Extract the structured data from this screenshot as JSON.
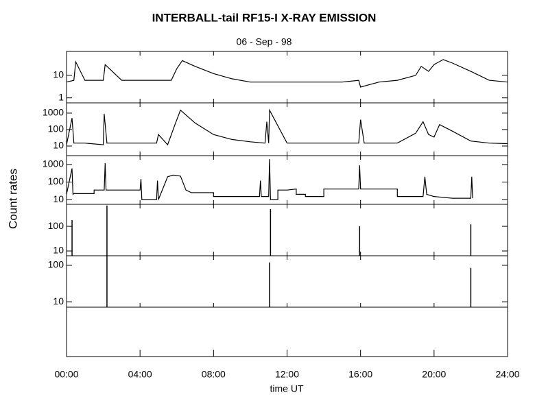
{
  "title": "INTERBALL-tail  RF15-I   X-RAY  EMISSION",
  "subtitle": "06 - Sep - 98",
  "ylabel": "Count  rates",
  "xlabel": "time UT",
  "xlim": [
    0,
    24
  ],
  "xticks": [
    {
      "value": 0,
      "label": "00:00"
    },
    {
      "value": 4,
      "label": "04:00"
    },
    {
      "value": 8,
      "label": "08:00"
    },
    {
      "value": 12,
      "label": "12:00"
    },
    {
      "value": 16,
      "label": "16:00"
    },
    {
      "value": 20,
      "label": "20:00"
    },
    {
      "value": 24,
      "label": "24:00"
    }
  ],
  "chart_data": [
    {
      "type": "line",
      "log": true,
      "color": "#000000",
      "ylim": [
        0.6,
        115
      ],
      "yticks": [
        1,
        10
      ],
      "x": [
        0,
        0.4,
        0.5,
        1,
        2,
        2.1,
        3,
        4,
        5,
        5.7,
        6,
        6.3,
        7,
        8,
        9,
        10,
        11,
        12,
        13,
        14,
        15,
        15.9,
        16,
        17,
        18,
        19,
        19.3,
        19.7,
        20,
        20.5,
        21,
        22,
        23,
        24
      ],
      "values": [
        5,
        6,
        40,
        6,
        6,
        30,
        6,
        6,
        6,
        6,
        20,
        45,
        25,
        12,
        7,
        5,
        5,
        5,
        5,
        5,
        5,
        6,
        3,
        5,
        6,
        10,
        25,
        15,
        30,
        50,
        35,
        15,
        6,
        5
      ]
    },
    {
      "type": "line",
      "log": true,
      "color": "#000000",
      "ylim": [
        2.6,
        4200
      ],
      "yticks": [
        10,
        100,
        1000
      ],
      "x": [
        0,
        0.3,
        0.4,
        1,
        2,
        2.05,
        2.2,
        3,
        4,
        4.9,
        5,
        5.5,
        5.9,
        6.2,
        7,
        8,
        9,
        10,
        10.8,
        10.9,
        11,
        11.05,
        12,
        13,
        14,
        15,
        15.9,
        16,
        16.2,
        17,
        18,
        19,
        19.4,
        19.7,
        20,
        20.3,
        21,
        22,
        23,
        24
      ],
      "values": [
        12,
        500,
        15,
        15,
        12,
        900,
        15,
        15,
        15,
        15,
        50,
        12,
        200,
        1500,
        250,
        50,
        25,
        18,
        15,
        300,
        15,
        1500,
        15,
        15,
        15,
        15,
        15,
        400,
        15,
        15,
        15,
        60,
        300,
        50,
        35,
        200,
        80,
        20,
        15,
        14
      ]
    },
    {
      "type": "line",
      "log": true,
      "color": "#000000",
      "ylim": [
        5.4,
        3200
      ],
      "yticks": [
        10,
        100,
        1000
      ],
      "x": [
        0,
        0.3,
        0.35,
        0.4,
        1.5,
        1.5,
        2.05,
        2.1,
        2.15,
        4,
        4.05,
        4.1,
        4.9,
        4.95,
        5,
        5.5,
        5.8,
        6.2,
        6.5,
        6.8,
        8,
        8,
        10.5,
        10.55,
        10.6,
        11,
        11.05,
        11.1,
        11.5,
        11.5,
        12,
        12.5,
        12.5,
        13,
        13,
        14,
        14,
        15.9,
        15.95,
        16,
        18,
        18,
        19.4,
        19.5,
        19.6,
        20,
        21,
        22,
        22.05,
        22.1
      ],
      "values": [
        20,
        600,
        20,
        22,
        22,
        35,
        35,
        1200,
        35,
        35,
        150,
        10,
        10,
        120,
        10,
        200,
        250,
        220,
        35,
        25,
        25,
        15,
        15,
        120,
        15,
        15,
        2000,
        10,
        10,
        35,
        35,
        40,
        20,
        20,
        15,
        15,
        40,
        40,
        900,
        40,
        40,
        15,
        15,
        200,
        20,
        15,
        12,
        12,
        200,
        12
      ]
    },
    {
      "type": "bar",
      "log": true,
      "color": "#000000",
      "ylim": [
        6.4,
        780
      ],
      "yticks": [
        10,
        100
      ],
      "x": [
        0.3,
        2.2,
        11.1,
        15.95,
        22.0
      ],
      "values": [
        180,
        700,
        500,
        100,
        120
      ]
    },
    {
      "type": "bar",
      "log": true,
      "color": "#000000",
      "ylim": [
        7.1,
        183
      ],
      "yticks": [
        10,
        100
      ],
      "x": [
        2.2,
        11.05,
        22.0
      ],
      "values": [
        180,
        120,
        85
      ]
    }
  ]
}
